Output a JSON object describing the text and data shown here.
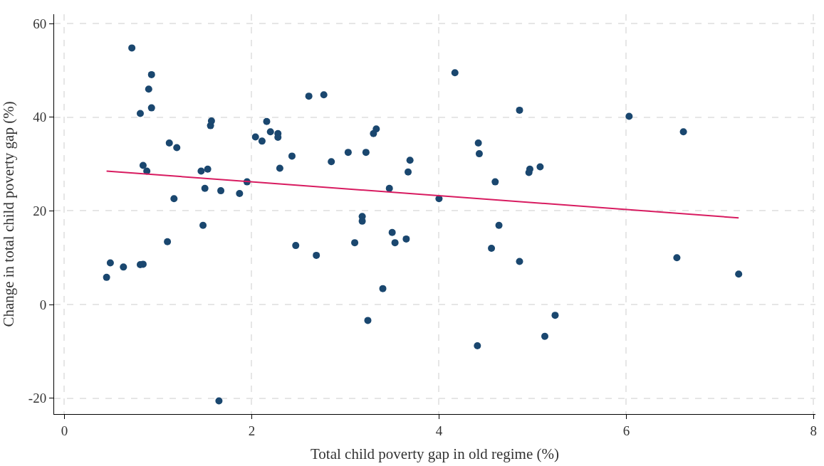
{
  "chart_data": {
    "type": "scatter",
    "xlabel": "Total child poverty gap in old regime (%)",
    "ylabel": "Change in total child poverty gap (%)",
    "xlim": [
      -0.11,
      8.02
    ],
    "ylim": [
      -23.4,
      62
    ],
    "xticks": [
      0,
      2,
      4,
      6,
      8
    ],
    "yticks": [
      -20,
      0,
      20,
      40,
      60
    ],
    "grid": true,
    "series": [
      {
        "marker": "circle",
        "color": "#1a476f",
        "x": [
          0.45,
          0.49,
          0.63,
          0.72,
          0.81,
          0.84,
          0.81,
          0.84,
          0.88,
          0.9,
          0.93,
          0.93,
          1.1,
          1.12,
          1.2,
          1.17,
          1.46,
          1.48,
          1.5,
          1.53,
          1.56,
          1.57,
          1.67,
          1.65,
          1.87,
          1.95,
          2.04,
          2.11,
          2.16,
          2.2,
          2.28,
          2.28,
          2.3,
          2.43,
          2.47,
          2.61,
          2.69,
          2.77,
          2.85,
          3.03,
          3.1,
          3.22,
          3.18,
          3.18,
          3.24,
          3.3,
          3.33,
          3.4,
          3.47,
          3.5,
          3.53,
          3.65,
          3.67,
          3.69,
          4.0,
          4.17,
          4.41,
          4.42,
          4.43,
          4.56,
          4.6,
          4.64,
          4.86,
          4.86,
          4.96,
          4.97,
          5.08,
          5.13,
          5.24,
          6.03,
          6.54,
          6.61,
          7.2
        ],
        "values": [
          5.8,
          8.9,
          8.0,
          54.8,
          8.5,
          8.6,
          40.8,
          29.7,
          28.5,
          46.0,
          49.1,
          42.0,
          13.4,
          34.5,
          33.5,
          22.6,
          28.5,
          16.9,
          24.8,
          28.9,
          38.2,
          39.2,
          24.3,
          -20.6,
          23.7,
          26.2,
          35.8,
          34.9,
          39.1,
          36.9,
          36.5,
          35.7,
          29.1,
          31.7,
          12.6,
          44.5,
          10.5,
          44.8,
          30.5,
          32.5,
          13.2,
          32.5,
          18.8,
          17.8,
          -3.4,
          36.5,
          37.5,
          3.4,
          24.8,
          15.4,
          13.2,
          14.0,
          28.3,
          30.8,
          22.6,
          49.5,
          -8.8,
          34.5,
          32.2,
          12.0,
          26.2,
          16.9,
          9.2,
          41.5,
          28.2,
          28.9,
          29.4,
          -6.8,
          -2.3,
          40.2,
          10.0,
          36.9,
          6.5
        ]
      },
      {
        "type": "line",
        "color": "#d81b60",
        "line_style": "solid",
        "x": [
          0.45,
          7.2
        ],
        "values": [
          28.5,
          18.5
        ]
      }
    ]
  }
}
